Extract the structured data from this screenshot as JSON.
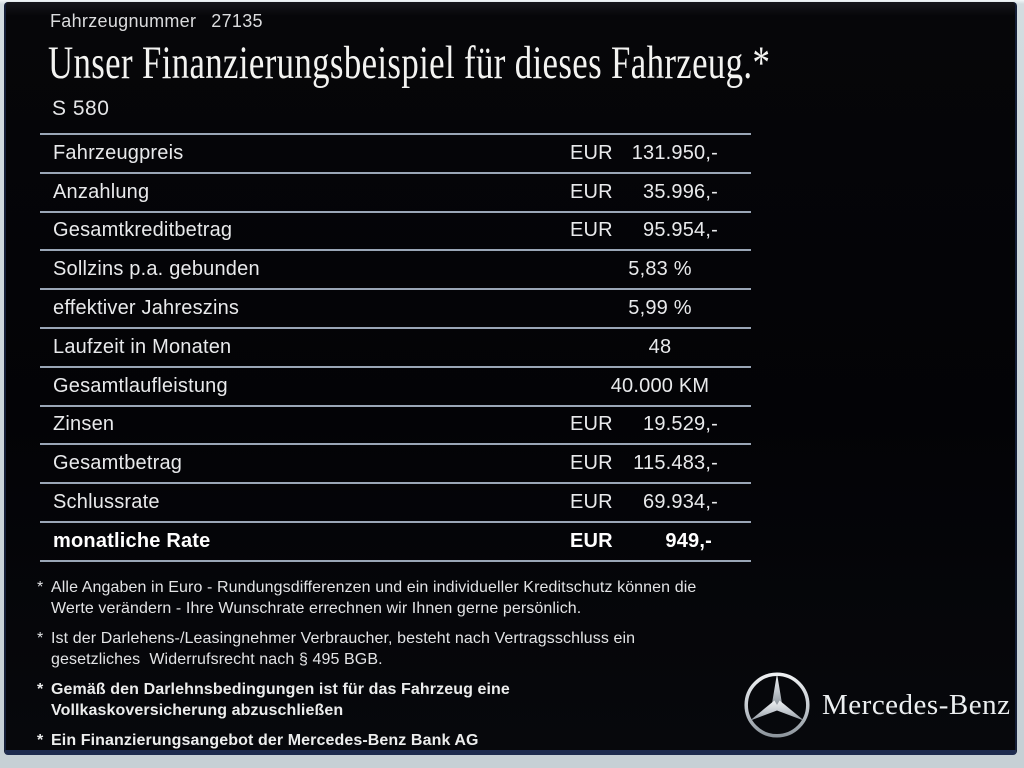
{
  "header": {
    "vehicle_number_label": "Fahrzeugnummer",
    "vehicle_number": "27135",
    "title": "Unser Finanzierungsbeispiel für dieses Fahrzeug.*",
    "model": "S 580"
  },
  "finance_table": {
    "rows": [
      {
        "label": "Fahrzeugpreis",
        "currency": "EUR",
        "value": "131.950,-",
        "bold": false
      },
      {
        "label": "Anzahlung",
        "currency": "EUR",
        "value": "35.996,-",
        "bold": false
      },
      {
        "label": "Gesamtkreditbetrag",
        "currency": "EUR",
        "value": "95.954,-",
        "bold": false
      },
      {
        "label": "Sollzins p.a. gebunden",
        "currency": "",
        "value": "5,83 %",
        "bold": false
      },
      {
        "label": "effektiver Jahreszins",
        "currency": "",
        "value": "5,99 %",
        "bold": false
      },
      {
        "label": "Laufzeit in Monaten",
        "currency": "",
        "value": "48",
        "bold": false
      },
      {
        "label": "Gesamtlaufleistung",
        "currency": "",
        "value": "40.000 KM",
        "bold": false
      },
      {
        "label": "Zinsen",
        "currency": "EUR",
        "value": "19.529,-",
        "bold": false
      },
      {
        "label": "Gesamtbetrag",
        "currency": "EUR",
        "value": "115.483,-",
        "bold": false
      },
      {
        "label": "Schlussrate",
        "currency": "EUR",
        "value": "69.934,-",
        "bold": false
      },
      {
        "label": "monatliche Rate",
        "currency": "EUR",
        "value": "949,-",
        "bold": true
      }
    ]
  },
  "footnotes": [
    {
      "marker": "*",
      "bold": false,
      "lines": [
        "Alle Angaben in Euro - Rundungsdifferenzen und ein individueller Kreditschutz können die",
        "Werte verändern - Ihre Wunschrate errechnen wir Ihnen gerne persönlich."
      ]
    },
    {
      "marker": "*",
      "bold": false,
      "lines": [
        "Ist der Darlehens-/Leasingnehmer Verbraucher, besteht nach Vertragsschluss ein",
        "gesetzliches  Widerrufsrecht nach § 495 BGB."
      ]
    },
    {
      "marker": "*",
      "bold": true,
      "lines": [
        "Gemäß den Darlehnsbedingungen ist für das Fahrzeug eine",
        "Vollkaskoversicherung abzuschließen"
      ]
    },
    {
      "marker": "*",
      "bold": true,
      "lines": [
        "Ein Finanzierungsangebot der Mercedes-Benz Bank AG"
      ]
    }
  ],
  "brand": {
    "logo_icon": "mercedes-star-icon",
    "name": "Mercedes-Benz"
  },
  "colors": {
    "screen_background": "#050508",
    "frame": "#c6d0d5",
    "divider": "#9aa6b6",
    "accent_line": "#1d2b4e",
    "text_primary": "#e9eaec"
  }
}
